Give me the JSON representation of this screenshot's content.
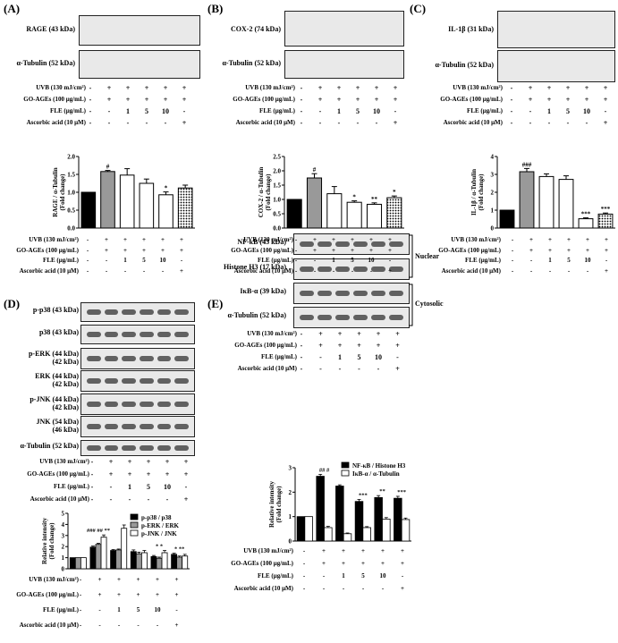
{
  "panels": {
    "A": {
      "label": "(A)",
      "blots": [
        "RAGE (43 kDa)",
        "α-Tubulin (52 kDa)"
      ]
    },
    "B": {
      "label": "(B)",
      "blots": [
        "COX-2 (74 kDa)",
        "α-Tubulin (52 kDa)"
      ]
    },
    "C": {
      "label": "(C)",
      "blots": [
        "IL-1β (31 kDa)",
        "α-Tubulin (52 kDa)"
      ]
    },
    "D": {
      "label": "(D)",
      "blots": [
        "p-p38 (43 kDa)",
        "p38 (43 kDa)",
        "p-ERK (44 kDa)\n(42 kDa)",
        "ERK (44 kDa)\n(42 kDa)",
        "p-JNK (44 kDa)\n(42 kDa)",
        "JNK (54 kDa)\n(46 kDa)",
        "α-Tubulin (52 kDa)"
      ]
    },
    "E": {
      "label": "(E)",
      "blots": [
        "NF-κB (43 kDa)",
        "Histone H3 (17 kDa)",
        "IκB-α (39 kDa)",
        "α-Tubulin (52 kDa)"
      ],
      "bracket_nuclear": "Nuclear",
      "bracket_cytosolic": "Cytosolic"
    }
  },
  "treatment_table": {
    "rows": [
      {
        "label": "UVB (130 mJ/cm²)",
        "values": [
          "-",
          "+",
          "+",
          "+",
          "+",
          "+"
        ]
      },
      {
        "label": "GO-AGEs (100 μg/mL)",
        "values": [
          "-",
          "+",
          "+",
          "+",
          "+",
          "+"
        ]
      },
      {
        "label": "FLE (μg/mL)",
        "values": [
          "-",
          "-",
          "1",
          "5",
          "10",
          "-"
        ]
      },
      {
        "label": "Ascorbic acid (10 μM)",
        "values": [
          "-",
          "-",
          "-",
          "-",
          "-",
          "+"
        ]
      }
    ]
  },
  "chart_data": [
    {
      "type": "bar",
      "panel": "A",
      "ylabel": "RAGE / α-Tubulin\n(Fold change)",
      "ylim": [
        0,
        2.0
      ],
      "yticks": [
        "0.0",
        "0.5",
        "1.0",
        "1.5",
        "2.0"
      ],
      "values": [
        1.0,
        1.58,
        1.48,
        1.25,
        0.93,
        1.12
      ],
      "errors": [
        0.0,
        0.03,
        0.18,
        0.12,
        0.08,
        0.08
      ],
      "annotations": [
        "",
        "#",
        "",
        "",
        "*",
        ""
      ],
      "fills": [
        "black",
        "gray",
        "white",
        "white",
        "white",
        "dots"
      ]
    },
    {
      "type": "bar",
      "panel": "B",
      "ylabel": "COX-2 / α-Tubulin\n(Fold change)",
      "ylim": [
        0,
        2.5
      ],
      "yticks": [
        "0.0",
        "0.5",
        "1.0",
        "1.5",
        "2.0",
        "2.5"
      ],
      "values": [
        1.0,
        1.75,
        1.2,
        0.9,
        0.83,
        1.06
      ],
      "errors": [
        0.0,
        0.15,
        0.25,
        0.05,
        0.05,
        0.06
      ],
      "annotations": [
        "",
        "#",
        "",
        "*",
        "**",
        "*"
      ],
      "fills": [
        "black",
        "gray",
        "white",
        "white",
        "white",
        "dots"
      ]
    },
    {
      "type": "bar",
      "panel": "C",
      "ylabel": "IL-1β / α-Tubulin\n(Fold change)",
      "ylim": [
        0,
        4
      ],
      "yticks": [
        "0",
        "1",
        "2",
        "3",
        "4"
      ],
      "values": [
        1.0,
        3.15,
        2.88,
        2.72,
        0.52,
        0.78
      ],
      "errors": [
        0.0,
        0.18,
        0.15,
        0.2,
        0.05,
        0.06
      ],
      "annotations": [
        "",
        "###",
        "",
        "",
        "***",
        "***"
      ],
      "fills": [
        "black",
        "gray",
        "white",
        "white",
        "white",
        "dots"
      ]
    },
    {
      "type": "bar",
      "panel": "D",
      "ylabel": "Relative intensity\n(Fold change)",
      "ylim": [
        0,
        5
      ],
      "yticks": [
        "0",
        "1",
        "2",
        "3",
        "4",
        "5"
      ],
      "series": [
        {
          "name": "p-p38 / p38",
          "values": [
            1.0,
            1.95,
            1.65,
            1.55,
            1.1,
            1.3
          ],
          "errors": [
            0,
            0.1,
            0.08,
            0.15,
            0.1,
            0.1
          ],
          "fill": "black"
        },
        {
          "name": "p-ERK / ERK",
          "values": [
            1.0,
            2.2,
            1.7,
            1.35,
            0.95,
            1.05
          ],
          "errors": [
            0,
            0.1,
            0.08,
            0.15,
            0.1,
            0.1
          ],
          "fill": "gray"
        },
        {
          "name": "p-JNK / JNK",
          "values": [
            1.0,
            2.85,
            3.65,
            1.45,
            1.45,
            1.15
          ],
          "errors": [
            0,
            0.2,
            0.3,
            0.2,
            0.2,
            0.15
          ],
          "fill": "white"
        }
      ],
      "annotations": [
        "",
        "### ## **",
        "",
        "",
        "* *",
        "* **"
      ]
    },
    {
      "type": "bar",
      "panel": "E",
      "ylabel": "Relative intensity\n(Fold change)",
      "ylim": [
        0,
        3
      ],
      "yticks": [
        "0",
        "1",
        "2",
        "3"
      ],
      "series": [
        {
          "name": "NF-κB / Histone H3",
          "values": [
            1.0,
            2.65,
            2.25,
            1.62,
            1.78,
            1.75
          ],
          "errors": [
            0,
            0.08,
            0.05,
            0.08,
            0.08,
            0.08
          ],
          "fill": "black"
        },
        {
          "name": "IκB-α / α-Tubulin",
          "values": [
            1.0,
            0.55,
            0.3,
            0.55,
            0.9,
            0.88
          ],
          "errors": [
            0,
            0.05,
            0.03,
            0.04,
            0.06,
            0.06
          ],
          "fill": "white"
        }
      ],
      "annotations": [
        "",
        "## #",
        "",
        "***",
        "**",
        "***"
      ]
    }
  ]
}
